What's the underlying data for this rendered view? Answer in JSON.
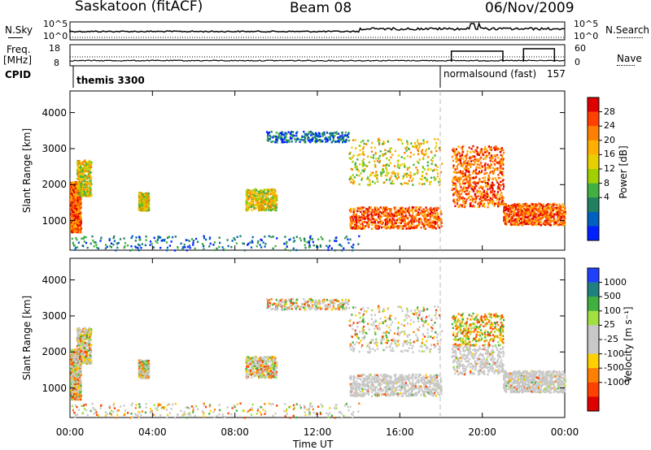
{
  "header": {
    "station": "Saskatoon (fitACF)",
    "beam": "Beam 08",
    "date": "06/Nov/2009"
  },
  "panels": {
    "nsky": {
      "left_label": "N.Sky",
      "tick_top": "10^5",
      "tick_bottom": "10^0",
      "right_tick_top": "10^5",
      "right_tick_bottom": "10^0",
      "right_label": "N.Search"
    },
    "freq": {
      "left_label_1": "Freq.",
      "left_label_2": "[MHz]",
      "tick_top": "18",
      "tick_bottom": "8",
      "right_tick_top": "60",
      "right_tick_bottom": "0",
      "right_label": "Nave"
    },
    "cpid": {
      "label": "CPID",
      "mode1": "themis 3300",
      "mode2": "normalsound (fast)",
      "mode2_id": "157"
    }
  },
  "colorbars": {
    "power": {
      "label": "Power [dB]",
      "ticks": [
        "28",
        "24",
        "20",
        "16",
        "12",
        "8",
        "4"
      ],
      "colors": [
        "#e00000",
        "#ff4000",
        "#ff8000",
        "#ffb000",
        "#e8d000",
        "#a0d000",
        "#40b040",
        "#208060",
        "#0060c0",
        "#0020ff"
      ]
    },
    "velocity": {
      "label": "Velocity [m s⁻¹]",
      "ticks": [
        "1000",
        "500",
        "100",
        "25",
        "-25",
        "-100",
        "-500",
        "-1000"
      ],
      "colors": [
        "#2040ff",
        "#208080",
        "#40b040",
        "#a0e040",
        "#c8c8c8",
        "#c8c8c8",
        "#ffd000",
        "#ff8000",
        "#ff4000",
        "#e00000"
      ]
    }
  },
  "axes": {
    "ylabel": "Slant Range [km]",
    "yticks": [
      "4000",
      "3000",
      "2000",
      "1000"
    ],
    "xticks": [
      "00:00",
      "04:00",
      "08:00",
      "12:00",
      "16:00",
      "20:00",
      "00:00"
    ],
    "xlabel": "Time UT"
  },
  "chart_data": {
    "type": "heatmap",
    "title": "Saskatoon (fitACF)",
    "xlabel": "Time UT",
    "ylabel": "Slant Range [km]",
    "xlim_hours": [
      0,
      24
    ],
    "ylim_km": [
      180,
      4600
    ],
    "mode_change_hour": 18.0,
    "power_scatter_regions": [
      {
        "t": [
          0.0,
          0.5
        ],
        "r": [
          700,
          2100
        ],
        "level": "high"
      },
      {
        "t": [
          0.3,
          1.0
        ],
        "r": [
          1700,
          2700
        ],
        "level": "medium"
      },
      {
        "t": [
          3.3,
          3.8
        ],
        "r": [
          1300,
          1800
        ],
        "level": "medium"
      },
      {
        "t": [
          8.5,
          10.0
        ],
        "r": [
          1300,
          1900
        ],
        "level": "medium"
      },
      {
        "t": [
          9.5,
          13.5
        ],
        "r": [
          3200,
          3500
        ],
        "level": "low"
      },
      {
        "t": [
          0.0,
          14.0
        ],
        "r": [
          200,
          600
        ],
        "level": "low"
      },
      {
        "t": [
          13.5,
          18.0
        ],
        "r": [
          800,
          1400
        ],
        "level": "high"
      },
      {
        "t": [
          13.5,
          18.0
        ],
        "r": [
          2000,
          3300
        ],
        "level": "medium"
      },
      {
        "t": [
          18.5,
          21.0
        ],
        "r": [
          1400,
          3100
        ],
        "level": "high"
      },
      {
        "t": [
          21.0,
          24.0
        ],
        "r": [
          900,
          1500
        ],
        "level": "high"
      }
    ]
  }
}
